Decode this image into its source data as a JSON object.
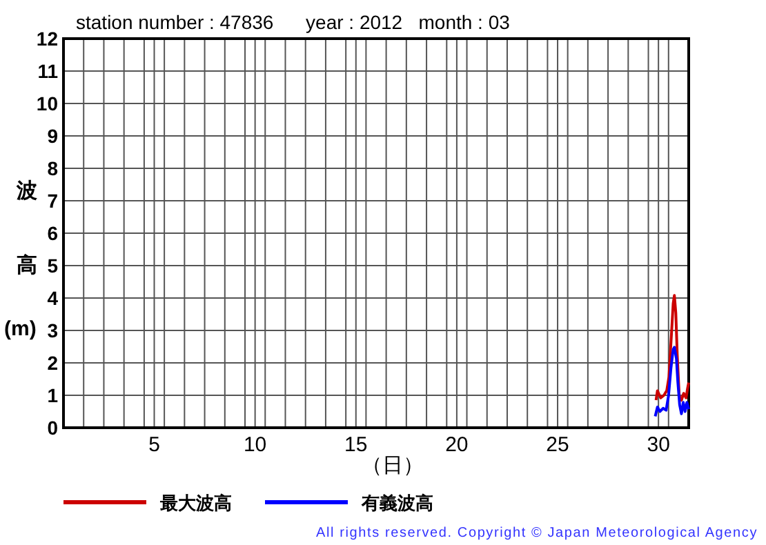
{
  "chart_data": {
    "type": "line",
    "title": "station number : 47836      year : 2012   month : 03",
    "xlabel": "（日）",
    "ylabel": "波高(m)",
    "xlim": [
      0.5,
      31.5
    ],
    "ylim": [
      0,
      12
    ],
    "xticks": [
      5,
      10,
      15,
      20,
      25,
      30,
      {
        "value": 1.5,
        "label": null
      },
      {
        "value": 2.5,
        "label": null
      },
      {
        "value": 3.5,
        "label": null
      },
      {
        "value": 4.5,
        "label": null
      },
      {
        "value": 5.5,
        "label": null
      },
      {
        "value": 6.5,
        "label": null
      },
      {
        "value": 7.5,
        "label": null
      },
      {
        "value": 8.5,
        "label": null
      },
      {
        "value": 9.5,
        "label": null
      },
      {
        "value": 10.5,
        "label": null
      },
      {
        "value": 11.5,
        "label": null
      },
      {
        "value": 12.5,
        "label": null
      },
      {
        "value": 13.5,
        "label": null
      },
      {
        "value": 14.5,
        "label": null
      },
      {
        "value": 15.5,
        "label": null
      },
      {
        "value": 16.5,
        "label": null
      },
      {
        "value": 17.5,
        "label": null
      },
      {
        "value": 18.5,
        "label": null
      },
      {
        "value": 19.5,
        "label": null
      },
      {
        "value": 20.5,
        "label": null
      },
      {
        "value": 21.5,
        "label": null
      },
      {
        "value": 22.5,
        "label": null
      },
      {
        "value": 23.5,
        "label": null
      },
      {
        "value": 24.5,
        "label": null
      },
      {
        "value": 25.5,
        "label": null
      },
      {
        "value": 26.5,
        "label": null
      },
      {
        "value": 27.5,
        "label": null
      },
      {
        "value": 28.5,
        "label": null
      },
      {
        "value": 29.5,
        "label": null
      },
      {
        "value": 30.5,
        "label": null
      }
    ],
    "yticks": [
      0,
      1,
      2,
      3,
      4,
      5,
      6,
      7,
      8,
      9,
      10,
      11,
      12
    ],
    "grid": true,
    "legend": "bottom",
    "annotations": [
      "All rights reserved. Copyright © Japan Meteorological Agency"
    ],
    "series": [
      {
        "name": "最大波高",
        "color": "#cc0000",
        "x": [
          29.88,
          29.95,
          30.11,
          30.27,
          30.41,
          30.52,
          30.64,
          30.73,
          30.79,
          30.86,
          30.93,
          31.03,
          31.14,
          31.25,
          31.37,
          31.44,
          31.5
        ],
        "values": [
          0.85,
          1.14,
          0.92,
          1.0,
          1.14,
          1.56,
          2.84,
          3.83,
          4.08,
          3.54,
          2.27,
          0.99,
          0.85,
          1.06,
          0.92,
          1.2,
          1.39
        ]
      },
      {
        "name": "有義波高",
        "color": "#0000ff",
        "x": [
          29.84,
          29.95,
          30.07,
          30.23,
          30.38,
          30.5,
          30.62,
          30.73,
          30.79,
          30.89,
          30.96,
          31.05,
          31.14,
          31.23,
          31.32,
          31.41,
          31.5
        ],
        "values": [
          0.35,
          0.64,
          0.5,
          0.6,
          0.54,
          0.99,
          1.84,
          2.41,
          2.48,
          2.13,
          1.42,
          0.71,
          0.43,
          0.78,
          0.5,
          0.78,
          0.57
        ]
      }
    ]
  }
}
